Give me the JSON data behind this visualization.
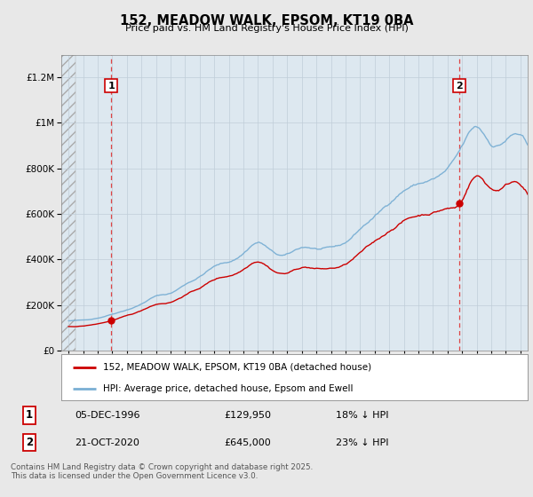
{
  "title": "152, MEADOW WALK, EPSOM, KT19 0BA",
  "subtitle": "Price paid vs. HM Land Registry's House Price Index (HPI)",
  "red_label": "152, MEADOW WALK, EPSOM, KT19 0BA (detached house)",
  "blue_label": "HPI: Average price, detached house, Epsom and Ewell",
  "transactions": [
    {
      "num": 1,
      "date": "05-DEC-1996",
      "price": "£129,950",
      "hpi": "18% ↓ HPI"
    },
    {
      "num": 2,
      "date": "21-OCT-2020",
      "price": "£645,000",
      "hpi": "23% ↓ HPI"
    }
  ],
  "footer": "Contains HM Land Registry data © Crown copyright and database right 2025.\nThis data is licensed under the Open Government Licence v3.0.",
  "marker1_x": 1996.92,
  "marker2_x": 2020.8,
  "marker1_y": 129950,
  "marker2_y": 645000,
  "ylim": [
    0,
    1300000
  ],
  "xlim_start": 1993.5,
  "xlim_end": 2025.5,
  "hatch_end_x": 1994.5,
  "background_color": "#e8e8e8",
  "plot_bg_color": "#dde8f0",
  "red_color": "#cc0000",
  "blue_color": "#7aafd4",
  "marker_line_color": "#dd4444",
  "grid_color": "#c0cdd8"
}
